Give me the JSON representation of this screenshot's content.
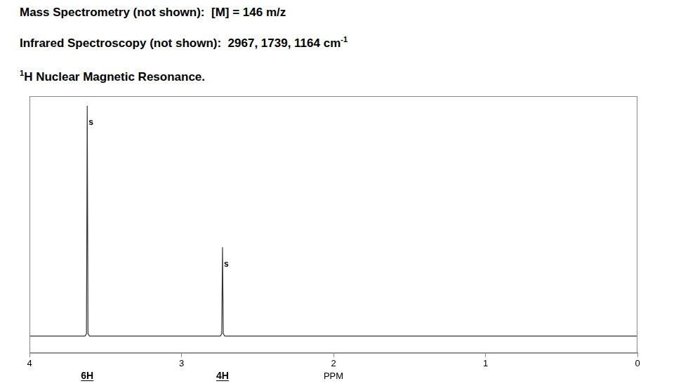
{
  "header": [
    [
      {
        "text": "Mass Spectrometry (not shown):  [M] = 146 m/z"
      }
    ],
    [
      {
        "text": "Infrared Spectroscopy (not shown):  2967, 1739, 1164 cm"
      },
      {
        "sup": "-1"
      }
    ],
    [
      {
        "sup": "1"
      },
      {
        "text": "H Nuclear Magnetic Resonance."
      }
    ]
  ],
  "chart_data": {
    "type": "line",
    "x": [
      4,
      3.635,
      3.625,
      3.62,
      3.615,
      3.605,
      2.745,
      2.735,
      2.73,
      2.725,
      2.715,
      0
    ],
    "values": [
      0,
      0,
      1,
      96,
      1,
      0,
      0,
      1,
      37,
      1,
      0,
      0
    ],
    "color": "#333333",
    "xlim": [
      4,
      0
    ],
    "xticks": [
      4,
      3,
      2,
      1,
      0
    ],
    "ylim": [
      -7,
      100
    ],
    "x_label": "PPM",
    "tick_labels": "x",
    "grid": false,
    "peaks": [
      {
        "x": 3.62,
        "label": "s",
        "integration": "6H"
      },
      {
        "x": 2.73,
        "label": "s",
        "integration": "4H"
      }
    ]
  }
}
